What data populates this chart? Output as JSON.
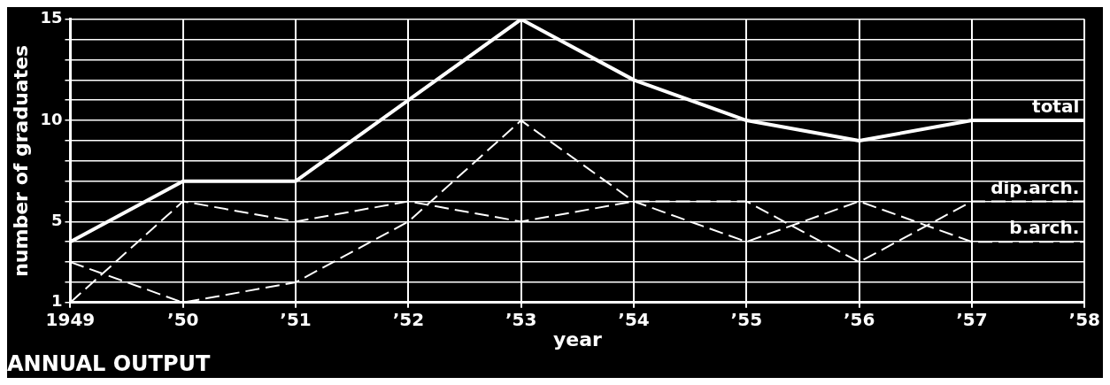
{
  "chart_data": {
    "type": "line",
    "title": "ANNUAL OUTPUT",
    "xlabel": "year",
    "ylabel": "number of graduates",
    "categories": [
      "1949",
      "’50",
      "’51",
      "’52",
      "’53",
      "’54",
      "’55",
      "’56",
      "’57",
      "’58"
    ],
    "series": [
      {
        "name": "total",
        "color": "#ffffff",
        "line_style": "solid",
        "values": [
          4,
          7,
          7,
          11,
          15,
          12,
          10,
          9,
          10,
          10
        ]
      },
      {
        "name": "dip.arch.",
        "color": "#ffffff",
        "line_style": "dashed",
        "values": [
          1,
          6,
          5,
          6,
          5,
          6,
          6,
          3,
          6,
          6
        ]
      },
      {
        "name": "b.arch.",
        "color": "#ffffff",
        "line_style": "dashed",
        "values": [
          3,
          1,
          2,
          5,
          10,
          6,
          4,
          6,
          4,
          4
        ]
      }
    ],
    "ylim": [
      1,
      15
    ],
    "yticks": [
      1,
      {
        "value": 2,
        "label": null
      },
      {
        "value": 3,
        "label": null
      },
      {
        "value": 4,
        "label": null
      },
      5,
      {
        "value": 6,
        "label": null
      },
      {
        "value": 7,
        "label": null
      },
      {
        "value": 8,
        "label": null
      },
      {
        "value": 9,
        "label": null
      },
      10,
      {
        "value": 11,
        "label": null
      },
      {
        "value": 12,
        "label": null
      },
      {
        "value": 13,
        "label": null
      },
      {
        "value": 14,
        "label": null
      },
      15
    ],
    "grid": true,
    "marker": "none"
  }
}
